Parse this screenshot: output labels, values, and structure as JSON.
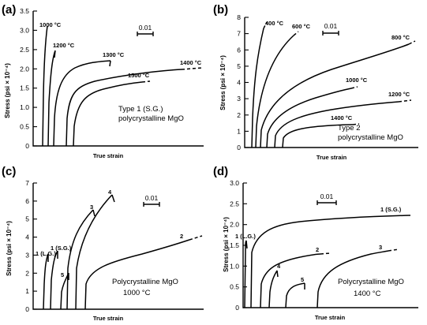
{
  "chart_data": [
    {
      "panel": "(a)",
      "type": "line",
      "xlabel": "True strain",
      "ylabel": "Stress (psi × 10⁻⁴)",
      "ylim": [
        0,
        3.5
      ],
      "yticks": [
        "0",
        "0.5",
        "1.0",
        "1.5",
        "2.0",
        "2.5",
        "3.0",
        "3.5"
      ],
      "scale_bar": "0.01",
      "annotation": [
        "Type 1 (S.G.)",
        "polycrystalline MgO"
      ],
      "series": [
        {
          "name": "1000 °C",
          "peak_stress": 3.3
        },
        {
          "name": "1200 °C",
          "peak_stress": 2.65
        },
        {
          "name": "1300 °C",
          "peak_stress": 2.5
        },
        {
          "name": "1400 °C",
          "peak_stress": 2.2
        },
        {
          "name": "1500 °C",
          "peak_stress": 1.95
        }
      ]
    },
    {
      "panel": "(b)",
      "type": "line",
      "xlabel": "True strain",
      "ylabel": "Stress (psi × 10⁻⁴)",
      "ylim": [
        0,
        8
      ],
      "yticks": [
        "0",
        "1",
        "2",
        "3",
        "4",
        "5",
        "6",
        "7",
        "8"
      ],
      "scale_bar": "0.01",
      "annotation": [
        "Type 2",
        "polycrystalline MgO"
      ],
      "series": [
        {
          "name": "400 °C",
          "peak_stress": 7.5
        },
        {
          "name": "600 °C",
          "peak_stress": 7.3
        },
        {
          "name": "800 °C",
          "peak_stress": 6.6
        },
        {
          "name": "1000 °C",
          "peak_stress": 3.6
        },
        {
          "name": "1200 °C",
          "peak_stress": 2.7
        },
        {
          "name": "1400 °C",
          "peak_stress": 1.4
        }
      ]
    },
    {
      "panel": "(c)",
      "type": "line",
      "xlabel": "True strain",
      "ylabel": "Stress (psi × 10⁻⁴)",
      "ylim": [
        0,
        7
      ],
      "yticks": [
        "0",
        "1",
        "2",
        "3",
        "4",
        "5",
        "6",
        "7"
      ],
      "scale_bar": "0.01",
      "annotation": [
        "Polycrystalline MgO",
        "1000 °C"
      ],
      "series": [
        {
          "name": "1 (L.G.)",
          "peak_stress": 3.2
        },
        {
          "name": "1 (S.G.)",
          "peak_stress": 3.4
        },
        {
          "name": "5",
          "peak_stress": 2.1
        },
        {
          "name": "3",
          "peak_stress": 5.5
        },
        {
          "name": "4",
          "peak_stress": 6.5
        },
        {
          "name": "2",
          "peak_stress": 4.0
        }
      ]
    },
    {
      "panel": "(d)",
      "type": "line",
      "xlabel": "True strain",
      "ylabel": "Stress (psi × 10⁻⁴)",
      "ylim": [
        0,
        3.0
      ],
      "yticks": [
        "0",
        "0.5",
        "1.0",
        "1.5",
        "2.0",
        "2.5",
        "3.0"
      ],
      "scale_bar": "0.01",
      "annotation": [
        "Polycrystalline MgO",
        "1400 °C"
      ],
      "series": [
        {
          "name": "1 (L.G.)",
          "peak_stress": 1.6
        },
        {
          "name": "1 (S.G.)",
          "peak_stress": 2.2
        },
        {
          "name": "2",
          "peak_stress": 1.35
        },
        {
          "name": "3",
          "peak_stress": 1.4
        },
        {
          "name": "4",
          "peak_stress": 0.95
        },
        {
          "name": "5",
          "peak_stress": 0.6
        }
      ]
    }
  ]
}
